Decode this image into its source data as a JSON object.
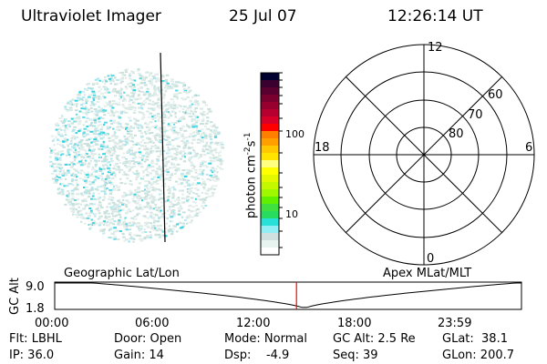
{
  "header": {
    "title": "Ultraviolet Imager",
    "date": "25 Jul 07",
    "time": "12:26:14 UT"
  },
  "colorbar": {
    "label": "photon cm",
    "exp1": "-2",
    "s": "s",
    "exp2": "-1",
    "tick_100": "100",
    "tick_10": "10",
    "colors": [
      "#000030",
      "#3a0030",
      "#5a0030",
      "#7a0030",
      "#980030",
      "#b80030",
      "#d80028",
      "#ff0000",
      "#ff8000",
      "#ffa000",
      "#ffc800",
      "#ffe400",
      "#ffff80",
      "#ffff00",
      "#e4f800",
      "#c4f800",
      "#a0f800",
      "#60f000",
      "#40e040",
      "#28dc60",
      "#28e0d8",
      "#90eef4",
      "#d0e0e0",
      "#e8f4f0",
      "#ffffff"
    ]
  },
  "polar": {
    "labels": {
      "top": "12",
      "bottom": "0",
      "left": "18",
      "right": "6"
    },
    "rings": [
      "60",
      "70",
      "80"
    ]
  },
  "timeline": {
    "left_label": "Geographic Lat/Lon",
    "right_label": "Apex MLat/MLT",
    "y_label": "GC Alt",
    "y_max": "9.0",
    "y_min": "1.8",
    "x_ticks": [
      "00:00",
      "06:00",
      "12:00",
      "18:00",
      "23:59"
    ],
    "current_time_fraction": 0.518,
    "line_color": "#ff0000"
  },
  "status": {
    "row1": [
      "Flt: LBHL",
      "Door: Open",
      "Mode: Normal",
      "GC Alt: 2.5 Re",
      "GLat:  38.1"
    ],
    "row2": [
      "IP: 36.0",
      "Gain: 14",
      "Dsp:    -4.9",
      "Seq: 39",
      "GLon: 200.7"
    ]
  }
}
